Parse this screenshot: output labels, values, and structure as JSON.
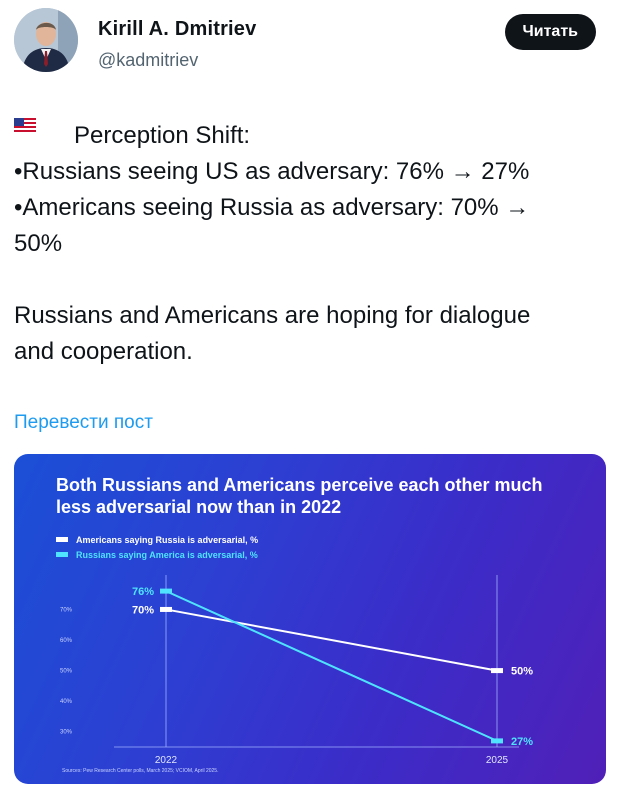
{
  "author": {
    "name": "Kirill A. Dmitriev",
    "handle": "@kadmitriev",
    "follow_label": "Читать"
  },
  "post": {
    "line1": "Perception Shift:",
    "line2": "•Russians seeing US as adversary: 76% → 27%",
    "line3": "•Americans seeing Russia as adversary: 70% →",
    "line4": "50%",
    "line5": "Russians and Americans are hoping for dialogue",
    "line6": "and cooperation.",
    "flags": [
      "russia-flag-icon",
      "usa-flag-icon"
    ]
  },
  "translate_label": "Перевести пост",
  "colors": {
    "americans_series": "#ffffff",
    "russians_series": "#4fe3ff",
    "link": "#1d9bf0",
    "card_bg_start": "#1b4fd6",
    "card_bg_end": "#5020b8"
  },
  "chart_data": {
    "type": "line",
    "title": "Both Russians and Americans perceive each other much less adversarial now than in 2022",
    "x": [
      "2022",
      "2025"
    ],
    "series": [
      {
        "name": "Americans saying Russia is adversarial, %",
        "values": [
          70,
          50
        ],
        "labels": [
          "70%",
          "50%"
        ]
      },
      {
        "name": "Russians saying America is adversarial, %",
        "values": [
          76,
          27
        ],
        "labels": [
          "76%",
          "27%"
        ]
      }
    ],
    "y_ticks": [
      70,
      60,
      50,
      40,
      30
    ],
    "y_tick_labels": [
      "70%",
      "60%",
      "50%",
      "40%",
      "30%"
    ],
    "ylim": [
      25,
      78
    ],
    "source": "Sources: Pew Research Center polls, March 2025; VCIOM, April 2025."
  }
}
